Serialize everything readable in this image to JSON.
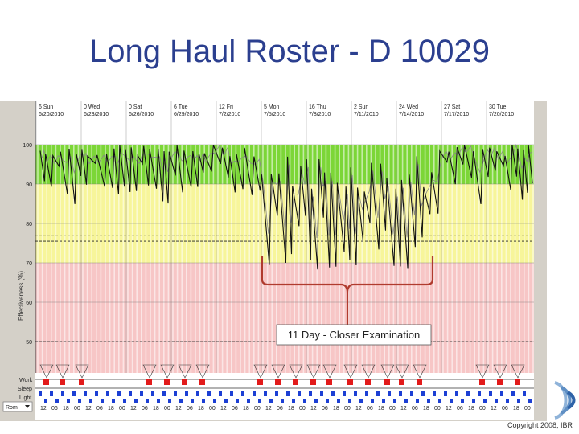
{
  "slide": {
    "title": "Long Haul Roster - D 10029",
    "copyright": "Copyright 2008, IBR"
  },
  "chart": {
    "ylabel": "Effectiveness (%)",
    "y_ticks": [
      "100",
      "90",
      "80",
      "70",
      "60",
      "50"
    ],
    "date_headers": [
      {
        "line1": "6 Sun",
        "line2": "6/20/2010"
      },
      {
        "line1": "0 Wed",
        "line2": "6/23/2010"
      },
      {
        "line1": "0 Sat",
        "line2": "6/26/2010"
      },
      {
        "line1": "6 Tue",
        "line2": "6/29/2010"
      },
      {
        "line1": "12 Fri",
        "line2": "7/2/2010"
      },
      {
        "line1": "5 Mon",
        "line2": "7/5/2010"
      },
      {
        "line1": "16 Thu",
        "line2": "7/8/2010"
      },
      {
        "line1": "2 Sun",
        "line2": "7/11/2010"
      },
      {
        "line1": "24 Wed",
        "line2": "7/14/2010"
      },
      {
        "line1": "27 Sat",
        "line2": "7/17/2010"
      },
      {
        "line1": "30 Tue",
        "line2": "7/20/2010"
      }
    ],
    "row_labels": [
      "Work",
      "Sleep",
      "Light"
    ],
    "dropdown_value": "Rom",
    "hour_ticks": [
      "12",
      "06",
      "18",
      "00",
      "12",
      "06",
      "18",
      "00",
      "12",
      "06",
      "18",
      "00",
      "12",
      "06",
      "18",
      "00",
      "12",
      "06",
      "18",
      "00",
      "12",
      "06",
      "18",
      "00",
      "12",
      "06",
      "18",
      "00",
      "12",
      "06",
      "18",
      "00",
      "12",
      "06",
      "18",
      "00",
      "12",
      "06",
      "18",
      "00",
      "12",
      "06",
      "18",
      "00"
    ],
    "annotation": "11 Day - Closer Examination",
    "colors": {
      "green_band": "#7cd637",
      "yellow_band": "#f7f59a",
      "red_band": "#f7c6c6",
      "brace": "#b03b2e",
      "title": "#2b3f8f"
    },
    "zones": {
      "green": [
        90,
        100
      ],
      "yellow": [
        70,
        90
      ],
      "red": [
        40,
        70
      ]
    },
    "threshold_lines": [
      77,
      75.5
    ]
  }
}
